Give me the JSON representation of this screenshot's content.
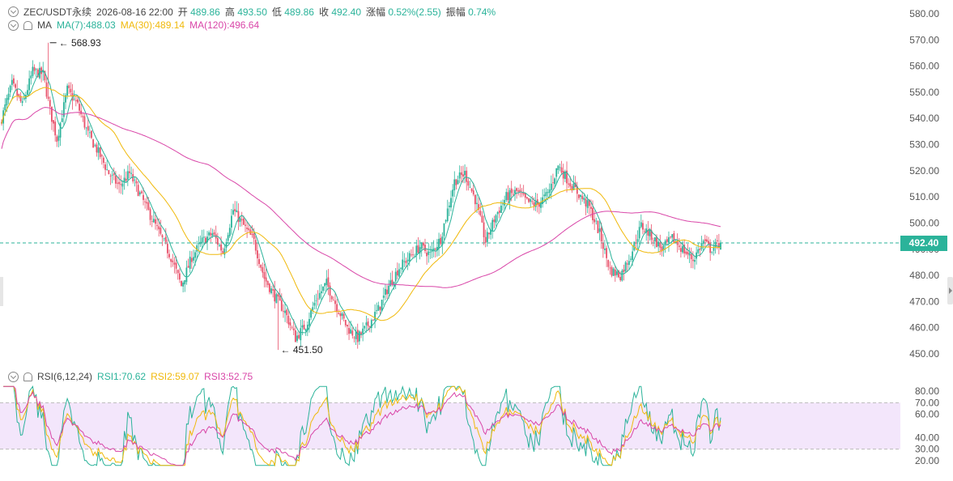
{
  "header": {
    "symbol": "ZEC/USDT永续",
    "datetime": "2026-08-16 22:00",
    "open_label": "开",
    "open": "489.86",
    "high_label": "高",
    "high": "493.50",
    "low_label": "低",
    "low": "489.86",
    "close_label": "收",
    "close": "492.40",
    "change_label": "涨幅",
    "change": "0.52%(2.55)",
    "amp_label": "振幅",
    "amp": "0.74%"
  },
  "ma_legend": {
    "label": "MA",
    "ma7": "MA(7):488.03",
    "ma30": "MA(30):489.14",
    "ma120": "MA(120):496.64"
  },
  "rsi_legend": {
    "label": "RSI(6,12,24)",
    "rsi1": "RSI1:70.62",
    "rsi2": "RSI2:59.07",
    "rsi3": "RSI3:52.75"
  },
  "price_tag": "492.40",
  "colors": {
    "up": "#2bb39a",
    "down": "#e8516a",
    "ma7": "#2bb39a",
    "ma30": "#f0b90b",
    "ma120": "#d946a8",
    "rsi_band": "#f3e6fb"
  },
  "chart_data": [
    {
      "type": "candlestick",
      "ylim": [
        445,
        583
      ],
      "yticks": [
        "580.00",
        "570.00",
        "560.00",
        "550.00",
        "540.00",
        "530.00",
        "520.00",
        "510.00",
        "500.00",
        "490.00",
        "480.00",
        "470.00",
        "460.00",
        "450.00"
      ],
      "last_price": 492.4,
      "max_annotation": {
        "value": 568.93,
        "label": "568.93"
      },
      "min_annotation": {
        "value": 451.5,
        "label": "451.50"
      },
      "anchors": [
        [
          0,
          540
        ],
        [
          6,
          553
        ],
        [
          12,
          545
        ],
        [
          18,
          558
        ],
        [
          24,
          557
        ],
        [
          28,
          543
        ],
        [
          32,
          532
        ],
        [
          38,
          551
        ],
        [
          44,
          545
        ],
        [
          50,
          534
        ],
        [
          56,
          527
        ],
        [
          62,
          519
        ],
        [
          68,
          514
        ],
        [
          74,
          519
        ],
        [
          80,
          511
        ],
        [
          86,
          503
        ],
        [
          92,
          495
        ],
        [
          98,
          487
        ],
        [
          104,
          476
        ],
        [
          110,
          487
        ],
        [
          116,
          493
        ],
        [
          122,
          496
        ],
        [
          128,
          489
        ],
        [
          134,
          505
        ],
        [
          140,
          499
        ],
        [
          146,
          493
        ],
        [
          152,
          479
        ],
        [
          158,
          472
        ],
        [
          164,
          466
        ],
        [
          170,
          456
        ],
        [
          176,
          461
        ],
        [
          182,
          471
        ],
        [
          188,
          477
        ],
        [
          194,
          468
        ],
        [
          200,
          460
        ],
        [
          206,
          456
        ],
        [
          212,
          461
        ],
        [
          218,
          467
        ],
        [
          224,
          476
        ],
        [
          230,
          483
        ],
        [
          236,
          487
        ],
        [
          242,
          491
        ],
        [
          248,
          488
        ],
        [
          254,
          494
        ],
        [
          262,
          516
        ],
        [
          268,
          519
        ],
        [
          274,
          509
        ],
        [
          280,
          493
        ],
        [
          286,
          503
        ],
        [
          292,
          510
        ],
        [
          298,
          512
        ],
        [
          304,
          508
        ],
        [
          310,
          507
        ],
        [
          316,
          511
        ],
        [
          322,
          522
        ],
        [
          328,
          516
        ],
        [
          334,
          511
        ],
        [
          340,
          506
        ],
        [
          346,
          496
        ],
        [
          352,
          482
        ],
        [
          358,
          480
        ],
        [
          364,
          488
        ],
        [
          370,
          499
        ],
        [
          376,
          495
        ],
        [
          382,
          490
        ],
        [
          388,
          494
        ],
        [
          394,
          490
        ],
        [
          400,
          486
        ],
        [
          406,
          493
        ],
        [
          410,
          490
        ],
        [
          416,
          492.4
        ]
      ],
      "ma_series": [
        {
          "name": "MA(7)",
          "window": 7
        },
        {
          "name": "MA(30)",
          "window": 30
        },
        {
          "name": "MA(120)",
          "window": 120
        }
      ]
    },
    {
      "type": "line",
      "ylim": [
        14,
        86
      ],
      "yticks": [
        "80.00",
        "70.00",
        "60.00",
        "40.00",
        "30.00",
        "20.00"
      ],
      "band": [
        30,
        70
      ],
      "series": [
        {
          "name": "RSI1",
          "period": 6
        },
        {
          "name": "RSI2",
          "period": 12
        },
        {
          "name": "RSI3",
          "period": 24
        }
      ]
    }
  ]
}
